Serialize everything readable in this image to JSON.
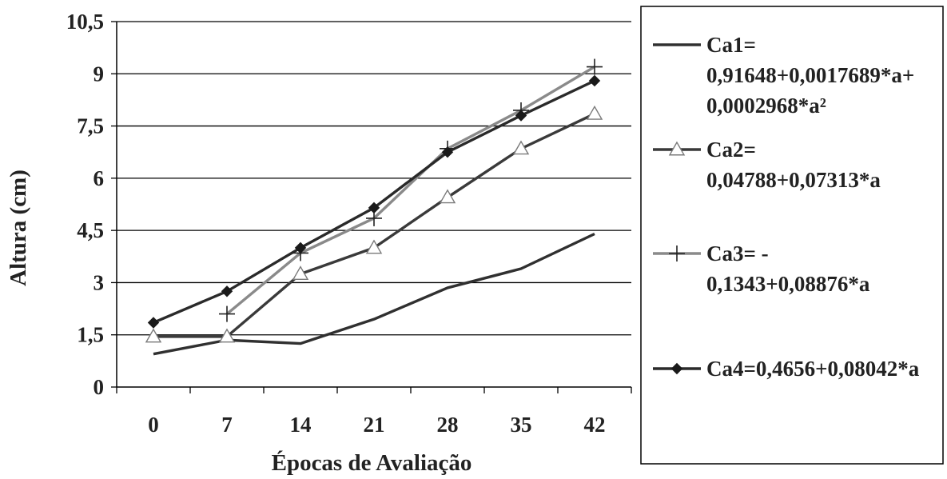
{
  "chart_data": {
    "type": "line",
    "title": "",
    "xlabel": "Épocas de Avaliação",
    "ylabel": "Altura (cm)",
    "categories": [
      "0",
      "7",
      "14",
      "21",
      "28",
      "35",
      "42"
    ],
    "x": [
      0,
      7,
      14,
      21,
      28,
      35,
      42
    ],
    "y_ticks": [
      "0",
      "1,5",
      "3",
      "4,5",
      "6",
      "7,5",
      "9",
      "10,5"
    ],
    "ylim": [
      0,
      10.5
    ],
    "grid": "horizontal",
    "legend_position": "right",
    "series": [
      {
        "key": "ca1",
        "legend_lines": [
          "Ca1=",
          "0,91648+0,0017689*a+",
          "0,0002968*a²"
        ],
        "marker": "none",
        "color": "#303030",
        "values": [
          0.95,
          1.35,
          1.25,
          1.95,
          2.85,
          3.4,
          4.4
        ]
      },
      {
        "key": "ca2",
        "legend_lines": [
          "Ca2=",
          "0,04788+0,07313*a"
        ],
        "marker": "triangle-open",
        "color": "#3a3a3a",
        "values": [
          1.45,
          1.45,
          3.25,
          4.0,
          5.45,
          6.85,
          7.85
        ]
      },
      {
        "key": "ca3",
        "legend_lines": [
          "Ca3= -",
          "0,1343+0,08876*a"
        ],
        "marker": "plus",
        "color": "#8a8a8a",
        "values": [
          null,
          2.1,
          3.85,
          4.85,
          6.85,
          7.95,
          9.2
        ]
      },
      {
        "key": "ca4",
        "legend_lines": [
          "Ca4=0,4656+0,08042*a"
        ],
        "marker": "diamond-filled",
        "color": "#2a2a2a",
        "values": [
          1.85,
          2.75,
          4.0,
          5.15,
          6.75,
          7.8,
          8.8
        ]
      }
    ]
  }
}
